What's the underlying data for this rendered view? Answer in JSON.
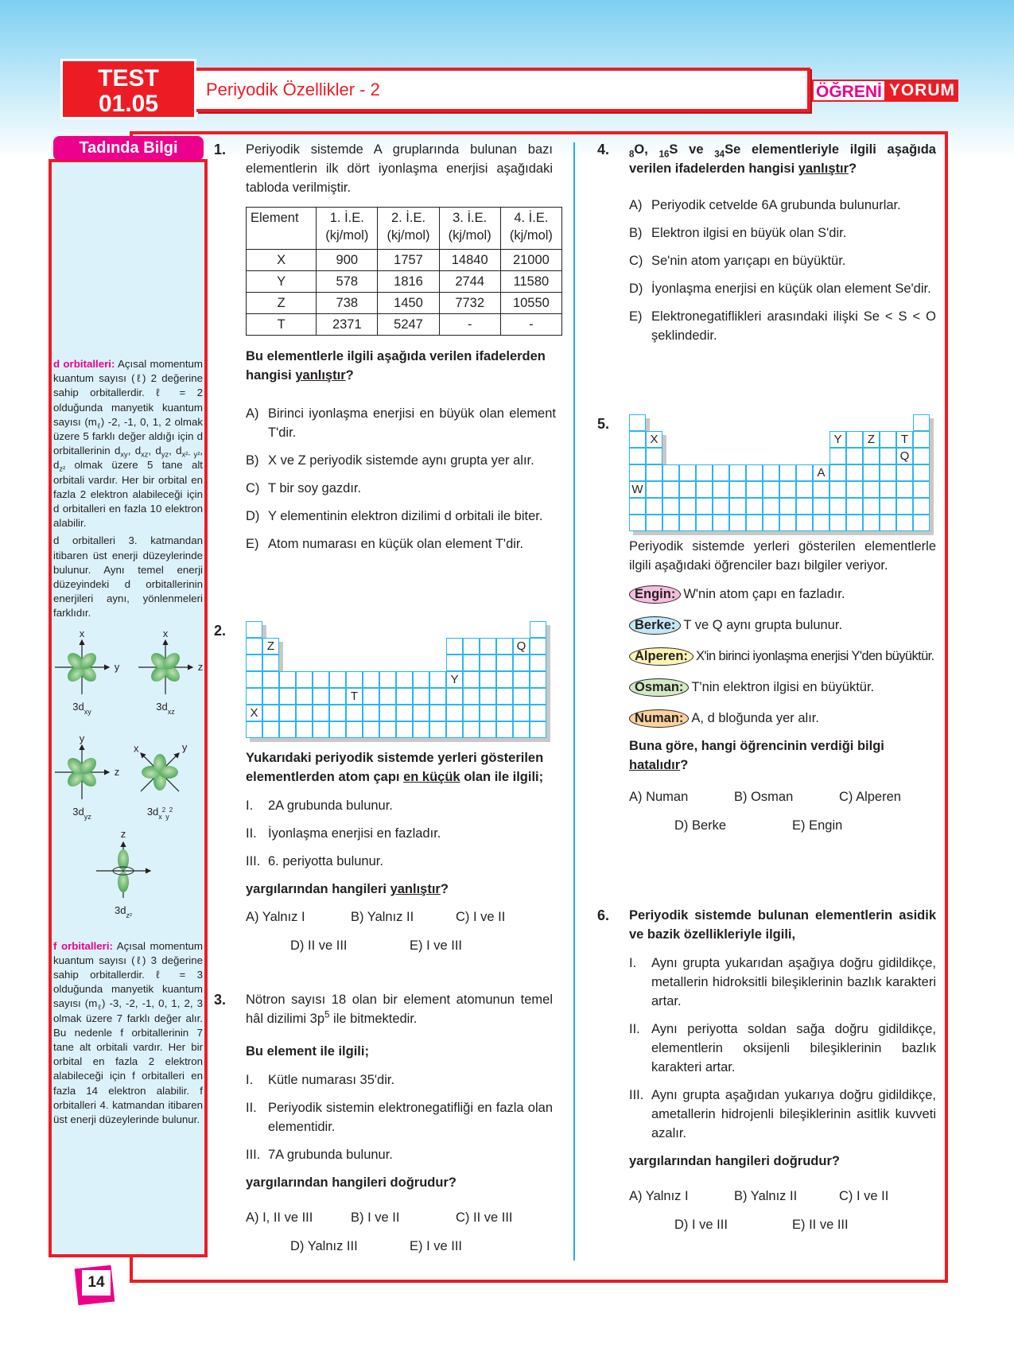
{
  "header": {
    "test_label": "TEST",
    "test_number": "01.05",
    "title": "Periyodik Özellikler - 2",
    "brand_part1": "ÖĞRENİ",
    "brand_part2": "YORUM"
  },
  "colors": {
    "primary_red": "#ed1c24",
    "magenta": "#ec008c",
    "sidebar_bg": "#dcf2fa",
    "grid_blue": "#29b6f0"
  },
  "sidebar": {
    "tab_label": "Tadında Bilgi",
    "d_heading": "d orbitalleri:",
    "d_paragraph": [
      " Açısal momentum kuantum sayısı (ℓ)  2 değerine sahip orbitallerdir. ℓ = 2 olduğunda manyetik kuantum sayısı (m",
      {
        "sub": "ℓ"
      },
      ") -2, -1, 0, 1, 2 olmak üzere 5 farklı değer aldığı için d orbitallerinin d",
      {
        "sub": "xy"
      },
      ", d",
      {
        "sub": "xz"
      },
      ", d",
      {
        "sub": "yz"
      },
      ", d",
      {
        "sub": "x²- y²"
      },
      ", d",
      {
        "sub": "z²"
      },
      " olmak üzere 5 tane alt orbitali vardır. Her bir orbital en fazla 2 elektron alabileceği için d orbitalleri en fazla 10 elektron alabilir."
    ],
    "d_paragraph2": "d orbitalleri 3. katmandan itibaren üst enerji düzeylerinde bulunur. Aynı temel enerji düzeyindeki d orbitallerinin enerjileri aynı, yönlenmeleri farklıdır.",
    "orbitals": [
      {
        "label": [
          "3d",
          {
            "sub": "xy"
          }
        ],
        "axes": [
          "x",
          "y"
        ]
      },
      {
        "label": [
          "3d",
          {
            "sub": "xz"
          }
        ],
        "axes": [
          "x",
          "z"
        ]
      },
      {
        "label": [
          "3d",
          {
            "sub": "yz"
          }
        ],
        "axes": [
          "y",
          "z"
        ]
      },
      {
        "label": [
          "3d",
          {
            "sub": "x"
          },
          {
            "sup": "2"
          },
          {
            "sub": "y"
          },
          {
            "sup": "2"
          }
        ],
        "axes": [
          "x",
          "y"
        ]
      },
      {
        "label": [
          "3d",
          {
            "sub": "z²"
          }
        ],
        "axes": [
          "z"
        ]
      }
    ],
    "f_heading": "f orbitalleri:",
    "f_paragraph": [
      " Açısal momentum kuantum sayısı (ℓ)  3 değerine sahip orbitallerdir. ℓ = 3 olduğunda manyetik kuantum sayısı (m",
      {
        "sub": "ℓ"
      },
      ") -3, -2, -1, 0, 1, 2, 3 olmak üzere 7 farklı değer alır. Bu nedenle f orbitallerinin 7 tane alt orbitali vardır. Her bir orbital en fazla 2 elektron alabileceği için f orbitalleri en fazla 14 elektron alabilir. f orbitalleri 4. katmandan itibaren üst enerji düzeylerinde bulunur."
    ]
  },
  "q1": {
    "number": "1.",
    "stem": "Periyodik sistemde A gruplarında bulunan bazı elementlerin ilk dört iyonlaşma enerjisi aşağıdaki tabloda verilmiştir.",
    "table": {
      "headers": [
        [
          "Element",
          ""
        ],
        [
          "1. İ.E.",
          "(kj/mol)"
        ],
        [
          "2. İ.E.",
          "(kj/mol)"
        ],
        [
          "3. İ.E.",
          "(kj/mol)"
        ],
        [
          "4. İ.E.",
          "(kj/mol)"
        ]
      ],
      "rows": [
        [
          "X",
          "900",
          "1757",
          "14840",
          "21000"
        ],
        [
          "Y",
          "578",
          "1816",
          "2744",
          "11580"
        ],
        [
          "Z",
          "738",
          "1450",
          "7732",
          "10550"
        ],
        [
          "T",
          "2371",
          "5247",
          "-",
          "-"
        ]
      ]
    },
    "question": [
      "Bu elementlerle ilgili aşağıda verilen ifadelerden hangisi ",
      {
        "u": "yanlıştır"
      },
      "?"
    ],
    "options": [
      {
        "label": "A)",
        "text": "Birinci iyonlaşma enerjisi en büyük olan element T'dir."
      },
      {
        "label": "B)",
        "text": "X ve Z periyodik sistemde aynı grupta yer alır."
      },
      {
        "label": "C)",
        "text": "T bir soy gazdır."
      },
      {
        "label": "D)",
        "text": "Y elementinin elektron dizilimi d orbitali ile biter."
      },
      {
        "label": "E)",
        "text": "Atom numarası en küçük olan element T'dir."
      }
    ]
  },
  "q2": {
    "number": "2.",
    "grid_labels": [
      {
        "t": "Z",
        "r": 2,
        "c": 2
      },
      {
        "t": "Q",
        "r": 2,
        "c": 17
      },
      {
        "t": "Y",
        "r": 4,
        "c": 13
      },
      {
        "t": "T",
        "r": 5,
        "c": 7
      },
      {
        "t": "X",
        "r": 6,
        "c": 1
      }
    ],
    "question": [
      "Yukarıdaki periyodik sistemde yerleri gösterilen elementlerden atom çapı ",
      {
        "u": "en küçük"
      },
      " olan ile ilgili;"
    ],
    "statements": [
      {
        "label": "I.",
        "text": "2A grubunda bulunur."
      },
      {
        "label": "II.",
        "text": "İyonlaşma enerjisi en fazladır."
      },
      {
        "label": "III.",
        "text": "6. periyotta bulunur."
      }
    ],
    "ask": [
      "yargılarından hangileri ",
      {
        "u": "yanlıştır"
      },
      "?"
    ],
    "answers": [
      "A) Yalnız I",
      "B) Yalnız II",
      "C) I ve II",
      "D) II ve III",
      "E) I ve III"
    ]
  },
  "q3": {
    "number": "3.",
    "stem": [
      "Nötron sayısı 18 olan bir element atomunun temel hâl dizilimi 3p",
      {
        "sup": "5"
      },
      " ile bitmektedir."
    ],
    "lead": "Bu element ile ilgili;",
    "statements": [
      {
        "label": "I.",
        "text": "Kütle numarası 35'dir."
      },
      {
        "label": "II.",
        "text": "Periyodik sistemin elektronegatifliği en fazla olan elementidir."
      },
      {
        "label": "III.",
        "text": "7A grubunda bulunur."
      }
    ],
    "ask": "yargılarından hangileri doğrudur?",
    "answers": [
      "A) I, II ve III",
      "B) I ve II",
      "C) II ve III",
      "D) Yalnız III",
      "E) I ve III"
    ]
  },
  "q4": {
    "number": "4.",
    "question": [
      {
        "sub": "8"
      },
      "O, ",
      {
        "sub": "16"
      },
      "S ve ",
      {
        "sub": "34"
      },
      "Se elementleriyle ilgili aşağıda verilen ifadelerden hangisi ",
      {
        "u": "yanlıştır"
      },
      "?"
    ],
    "options": [
      {
        "label": "A)",
        "text": "Periyodik cetvelde 6A grubunda bulunurlar."
      },
      {
        "label": "B)",
        "text": "Elektron ilgisi en büyük olan S'dir."
      },
      {
        "label": "C)",
        "text": "Se'nin atom yarıçapı en büyüktür."
      },
      {
        "label": "D)",
        "text": "İyonlaşma enerjisi en küçük olan element Se'dir."
      },
      {
        "label": "E)",
        "text": "Elektronegatiflikleri arasındaki ilişki Se < S < O şeklindedir."
      }
    ]
  },
  "q5": {
    "number": "5.",
    "grid_labels": [
      {
        "t": "X",
        "r": 2,
        "c": 2
      },
      {
        "t": "Y",
        "r": 2,
        "c": 13
      },
      {
        "t": "Z",
        "r": 2,
        "c": 15
      },
      {
        "t": "T",
        "r": 2,
        "c": 17
      },
      {
        "t": "Q",
        "r": 3,
        "c": 17
      },
      {
        "t": "A",
        "r": 4,
        "c": 12
      },
      {
        "t": "W",
        "r": 5,
        "c": 1
      }
    ],
    "stem": "Periyodik sistemde yerleri gösterilen elementlerle ilgili aşağıdaki öğrenciler bazı bilgiler veriyor.",
    "students": [
      {
        "name": "Engin:",
        "text": "W'nin atom çapı en fazladır.",
        "color": "#f7bde0"
      },
      {
        "name": "Berke:",
        "text": "T ve Q aynı grupta bulunur.",
        "color": "#c3e8f8"
      },
      {
        "name": "Alperen:",
        "text": "X'in birinci iyonlaşma enerjisi Y'den büyüktür.",
        "color": "#fdf5b0"
      },
      {
        "name": "Osman:",
        "text": "T'nin elektron ilgisi en büyüktür.",
        "color": "#d3e9c4"
      },
      {
        "name": "Numan:",
        "text": "A, d bloğunda yer alır.",
        "color": "#fcd29c"
      }
    ],
    "question": [
      "Buna göre, hangi öğrencinin verdiği bilgi ",
      {
        "u": "hatalıdır"
      },
      "?"
    ],
    "answers": [
      "A) Numan",
      "B) Osman",
      "C) Alperen",
      "D) Berke",
      "E) Engin"
    ]
  },
  "q6": {
    "number": "6.",
    "question": "Periyodik sistemde bulunan elementlerin asidik ve bazik özellikleriyle ilgili,",
    "statements": [
      {
        "label": "I.",
        "text": "Aynı grupta yukarıdan aşağıya doğru gidildikçe, metallerin hidroksitli bileşiklerinin bazlık karakteri artar."
      },
      {
        "label": "II.",
        "text": "Aynı periyotta soldan sağa doğru gidildikçe, elementlerin oksijenli bileşiklerinin bazlık karakteri artar."
      },
      {
        "label": "III.",
        "text": "Aynı grupta aşağıdan yukarıya doğru gidildikçe, ametallerin hidrojenli bileşiklerinin asitlik kuvveti azalır."
      }
    ],
    "ask": "yargılarından hangileri doğrudur?",
    "answers": [
      "A) Yalnız I",
      "B) Yalnız II",
      "C) I ve II",
      "D) I ve III",
      "E) II ve III"
    ]
  },
  "page_number": "14"
}
